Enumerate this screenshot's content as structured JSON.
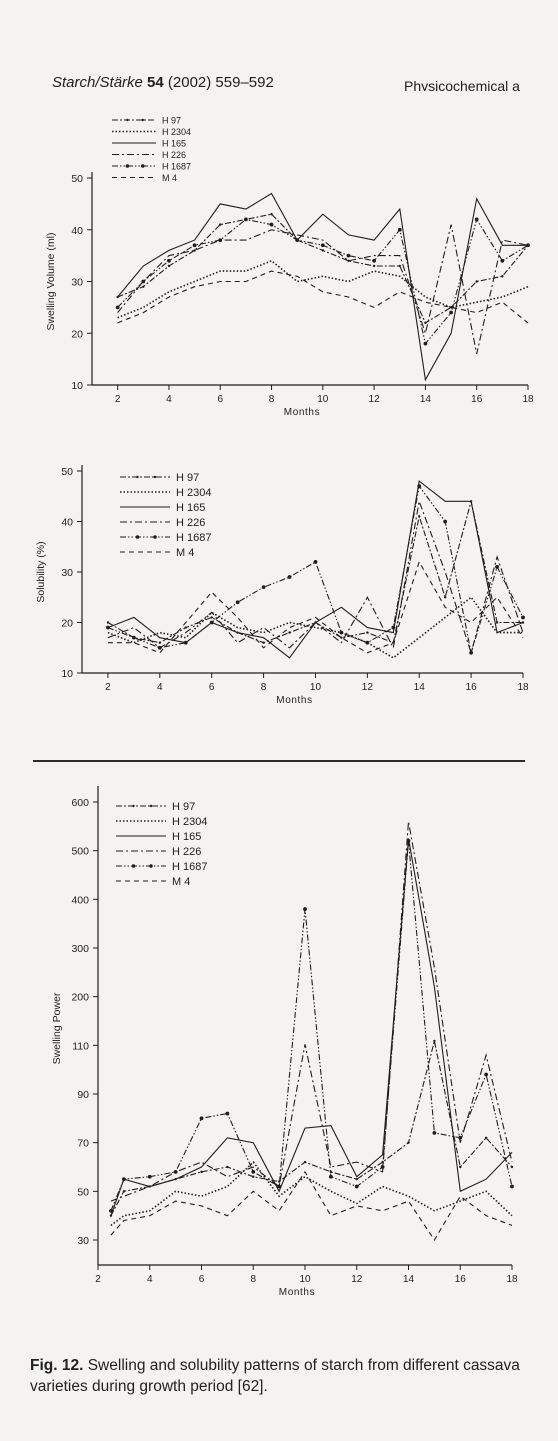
{
  "header": {
    "journal": "Starch/Stärke",
    "volume": "54",
    "citation": "(2002) 559–592",
    "section": "Physicochemical a"
  },
  "caption": {
    "label": "Fig. 12.",
    "text": "Swelling and solubility patterns of starch from different cassava varieties during growth period [62]."
  },
  "colors": {
    "ink": "#1e1e1e",
    "paper": "#f4f3f0"
  },
  "chart_data": [
    {
      "type": "line",
      "xlabel": "Months",
      "ylabel": "Swelling Volume (ml)",
      "xlim": [
        1,
        18
      ],
      "ylim": [
        10,
        50
      ],
      "xticks": [
        2,
        4,
        6,
        8,
        10,
        12,
        14,
        16,
        18
      ],
      "yticks": [
        10,
        20,
        30,
        40,
        50
      ],
      "legend_position": "top-left",
      "series": [
        {
          "name": "H 97",
          "style": "dash-x",
          "x": [
            2,
            3,
            4,
            5,
            6,
            7,
            8,
            9,
            10,
            11,
            12,
            13,
            14,
            15,
            16,
            17,
            18
          ],
          "y": [
            27,
            29,
            33,
            36,
            41,
            42,
            43,
            38,
            36,
            34,
            33,
            33,
            22,
            25,
            30,
            31,
            37
          ]
        },
        {
          "name": "H 2304",
          "style": "dotted",
          "x": [
            2,
            3,
            4,
            5,
            6,
            7,
            8,
            9,
            10,
            11,
            12,
            13,
            14,
            15,
            16,
            17,
            18
          ],
          "y": [
            23,
            25,
            28,
            30,
            32,
            32,
            34,
            30,
            31,
            30,
            32,
            31,
            27,
            25,
            26,
            27,
            29
          ]
        },
        {
          "name": "H 165",
          "style": "solid",
          "x": [
            2,
            3,
            4,
            5,
            6,
            7,
            8,
            9,
            10,
            11,
            12,
            13,
            14,
            15,
            16,
            17,
            18
          ],
          "y": [
            27,
            33,
            36,
            38,
            45,
            44,
            47,
            38,
            43,
            39,
            38,
            44,
            11,
            20,
            46,
            37,
            37
          ]
        },
        {
          "name": "H 226",
          "style": "dash-dot",
          "x": [
            2,
            3,
            4,
            5,
            6,
            7,
            8,
            9,
            10,
            11,
            12,
            13,
            14,
            15,
            16,
            17,
            18
          ],
          "y": [
            24,
            30,
            35,
            36,
            38,
            38,
            40,
            39,
            38,
            34,
            35,
            35,
            20,
            41,
            16,
            38,
            37
          ]
        },
        {
          "name": "H 1687",
          "style": "dash-dot-dot",
          "x": [
            2,
            3,
            4,
            5,
            6,
            7,
            8,
            9,
            10,
            11,
            12,
            13,
            14,
            15,
            16,
            17,
            18
          ],
          "y": [
            25,
            30,
            34,
            37,
            38,
            42,
            41,
            38,
            37,
            35,
            34,
            40,
            18,
            24,
            42,
            34,
            37
          ]
        },
        {
          "name": "M 4",
          "style": "dashed",
          "x": [
            2,
            3,
            4,
            5,
            6,
            7,
            8,
            9,
            10,
            11,
            12,
            13,
            14,
            15,
            16,
            17,
            18
          ],
          "y": [
            22,
            24,
            27,
            29,
            30,
            30,
            32,
            31,
            28,
            27,
            25,
            28,
            26,
            25,
            24,
            26,
            22
          ]
        }
      ]
    },
    {
      "type": "line",
      "xlabel": "Months",
      "ylabel": "Solubility (%)",
      "xlim": [
        1,
        18
      ],
      "ylim": [
        10,
        50
      ],
      "xticks": [
        2,
        4,
        6,
        8,
        10,
        12,
        14,
        16,
        18
      ],
      "yticks": [
        10,
        20,
        30,
        40,
        50
      ],
      "legend_position": "top-left",
      "series": [
        {
          "name": "H 97",
          "style": "dash-x",
          "x": [
            2,
            3,
            4,
            5,
            6,
            7,
            8,
            9,
            10,
            11,
            12,
            13,
            14,
            15,
            16,
            17,
            18
          ],
          "y": [
            20,
            17,
            16,
            19,
            21,
            18,
            16,
            18,
            20,
            17,
            18,
            16,
            41,
            25,
            44,
            20,
            20
          ]
        },
        {
          "name": "H 2304",
          "style": "dotted",
          "x": [
            2,
            3,
            4,
            5,
            6,
            7,
            8,
            9,
            10,
            11,
            12,
            13,
            14,
            15,
            16,
            17,
            18
          ],
          "y": [
            18,
            16,
            18,
            17,
            22,
            19,
            18,
            20,
            19,
            18,
            16,
            13,
            17,
            21,
            25,
            18,
            18
          ]
        },
        {
          "name": "H 165",
          "style": "solid",
          "x": [
            2,
            3,
            4,
            5,
            6,
            7,
            8,
            9,
            10,
            11,
            12,
            13,
            14,
            15,
            16,
            17,
            18
          ],
          "y": [
            19,
            21,
            17,
            16,
            20,
            18,
            17,
            13,
            20,
            23,
            19,
            18,
            48,
            44,
            44,
            18,
            20
          ]
        },
        {
          "name": "H 226",
          "style": "dash-dot",
          "x": [
            2,
            3,
            4,
            5,
            6,
            7,
            8,
            9,
            10,
            11,
            12,
            13,
            14,
            15,
            16,
            17,
            18
          ],
          "y": [
            17,
            19,
            15,
            18,
            22,
            16,
            19,
            15,
            20,
            16,
            25,
            15,
            44,
            30,
            14,
            33,
            18
          ]
        },
        {
          "name": "H 1687",
          "style": "dash-dot-dot",
          "x": [
            2,
            3,
            4,
            5,
            6,
            7,
            8,
            9,
            10,
            11,
            12,
            13,
            14,
            15,
            16,
            17,
            18
          ],
          "y": [
            19,
            17,
            15,
            16,
            20,
            24,
            27,
            29,
            32,
            18,
            16,
            19,
            47,
            40,
            14,
            31,
            21
          ]
        },
        {
          "name": "M 4",
          "style": "dashed",
          "x": [
            2,
            3,
            4,
            5,
            6,
            7,
            8,
            9,
            10,
            11,
            12,
            13,
            14,
            15,
            16,
            17,
            18
          ],
          "y": [
            16,
            16,
            14,
            20,
            26,
            21,
            15,
            19,
            21,
            17,
            14,
            16,
            32,
            23,
            20,
            25,
            17
          ]
        }
      ]
    },
    {
      "type": "line",
      "xlabel": "Months",
      "ylabel": "Swelling Power",
      "xlim": [
        2,
        18
      ],
      "xticks": [
        2,
        4,
        6,
        8,
        10,
        12,
        14,
        16,
        18
      ],
      "yticks": [
        30,
        50,
        70,
        90,
        110,
        200,
        300,
        400,
        500,
        600
      ],
      "ytick_labels": [
        "30",
        "50",
        "70",
        "90",
        "110",
        "200",
        "300",
        "400",
        "500",
        "600"
      ],
      "legend_position": "top-left",
      "series": [
        {
          "name": "H 97",
          "style": "dash-x",
          "x": [
            2.5,
            3,
            4,
            5,
            6,
            7,
            8,
            9,
            10,
            11,
            12,
            13,
            14,
            15,
            16,
            17,
            18
          ],
          "y": [
            40,
            50,
            52,
            55,
            58,
            60,
            56,
            54,
            62,
            58,
            55,
            62,
            70,
            118,
            60,
            72,
            60
          ]
        },
        {
          "name": "H 2304",
          "style": "dotted",
          "x": [
            2.5,
            3,
            4,
            5,
            6,
            7,
            8,
            9,
            10,
            11,
            12,
            13,
            14,
            15,
            16,
            17,
            18
          ],
          "y": [
            36,
            40,
            42,
            50,
            48,
            52,
            62,
            48,
            56,
            50,
            45,
            52,
            48,
            42,
            46,
            50,
            40
          ]
        },
        {
          "name": "H 165",
          "style": "solid",
          "x": [
            2.5,
            3,
            4,
            5,
            6,
            7,
            8,
            9,
            10,
            11,
            12,
            13,
            14,
            15,
            16,
            17,
            18
          ],
          "y": [
            40,
            55,
            52,
            55,
            60,
            72,
            70,
            50,
            76,
            77,
            56,
            65,
            525,
            220,
            50,
            55,
            66
          ]
        },
        {
          "name": "H 226",
          "style": "dash-dot",
          "x": [
            2.5,
            3,
            4,
            5,
            6,
            7,
            8,
            9,
            10,
            11,
            12,
            13,
            14,
            15,
            16,
            17,
            18
          ],
          "y": [
            46,
            48,
            52,
            58,
            62,
            56,
            60,
            52,
            112,
            60,
            62,
            58,
            560,
            260,
            70,
            106,
            62
          ]
        },
        {
          "name": "H 1687",
          "style": "dash-dot-dot",
          "x": [
            2.5,
            3,
            4,
            5,
            6,
            7,
            8,
            9,
            10,
            11,
            12,
            13,
            14,
            15,
            16,
            17,
            18
          ],
          "y": [
            42,
            55,
            56,
            58,
            80,
            82,
            58,
            52,
            380,
            56,
            52,
            60,
            520,
            74,
            72,
            98,
            52
          ]
        },
        {
          "name": "M 4",
          "style": "dashed",
          "x": [
            2.5,
            3,
            4,
            5,
            6,
            7,
            8,
            9,
            10,
            11,
            12,
            13,
            14,
            15,
            16,
            17,
            18
          ],
          "y": [
            32,
            38,
            40,
            46,
            44,
            40,
            50,
            42,
            58,
            40,
            44,
            42,
            46,
            30,
            48,
            40,
            36
          ]
        }
      ]
    }
  ]
}
